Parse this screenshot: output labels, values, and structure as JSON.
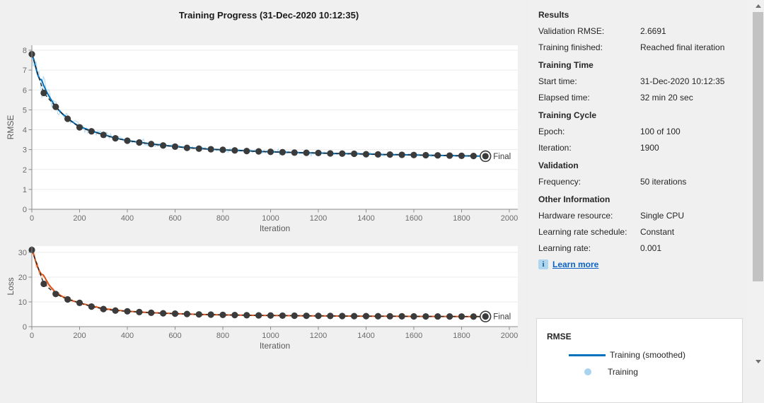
{
  "window": {
    "title": "Training Progress (31-Dec-2020 10:12:35)"
  },
  "colors": {
    "background": "#F0F0F0",
    "train_smoothed_blue": "#0072BD",
    "train_raw_blue": "#9ECFEE",
    "train_smoothed_orange": "#D95319",
    "train_raw_orange": "#F3B08C",
    "validation_marker": "#3B3B3B",
    "validation_dash": "#262626",
    "grid": "#EBEBEB",
    "axis": "#8C8C8C",
    "tick_text": "#6B6B6B",
    "link": "#0B63C5"
  },
  "results_panel": {
    "sections": [
      {
        "header": "Results",
        "rows": [
          {
            "label": "Validation RMSE:",
            "value": "2.6691"
          },
          {
            "label": "Training finished:",
            "value": "Reached final iteration"
          }
        ]
      },
      {
        "header": "Training Time",
        "rows": [
          {
            "label": "Start time:",
            "value": "31-Dec-2020 10:12:35"
          },
          {
            "label": "Elapsed time:",
            "value": "32 min 20 sec"
          }
        ]
      },
      {
        "header": "Training Cycle",
        "rows": [
          {
            "label": "Epoch:",
            "value": "100 of 100"
          },
          {
            "label": "Iteration:",
            "value": "1900"
          }
        ]
      },
      {
        "header": "Validation",
        "rows": [
          {
            "label": "Frequency:",
            "value": "50 iterations"
          }
        ]
      },
      {
        "header": "Other Information",
        "rows": [
          {
            "label": "Hardware resource:",
            "value": "Single CPU"
          },
          {
            "label": "Learning rate schedule:",
            "value": "Constant"
          },
          {
            "label": "Learning rate:",
            "value": "0.001"
          }
        ]
      }
    ],
    "learn_more_label": "Learn more",
    "info_icon_glyph": "i"
  },
  "legend": {
    "title": "RMSE",
    "entries": [
      {
        "label": "Training (smoothed)",
        "swatch": "line",
        "color": "#0072BD"
      },
      {
        "label": "Training",
        "swatch": "dot",
        "color": "#A8D4F0"
      }
    ]
  },
  "chart_data": [
    {
      "type": "line",
      "ylabel": "RMSE",
      "xlabel": "Iteration",
      "xlim": [
        0,
        2044
      ],
      "ylim": [
        0,
        8.25
      ],
      "xticks": [
        0,
        200,
        400,
        600,
        800,
        1000,
        1200,
        1400,
        1600,
        1800,
        2000
      ],
      "yticks": [
        0,
        1,
        2,
        3,
        4,
        5,
        6,
        7,
        8
      ],
      "grid_y": [
        1,
        2,
        3,
        4,
        5,
        6,
        7,
        8
      ],
      "legend_position": "external bottom-right card",
      "grid": "horizontal only",
      "final_label": "Final",
      "final_value": 2.6691,
      "series": [
        {
          "name": "Training (smoothed)",
          "color": "#0072BD",
          "style": "solid",
          "points": [
            [
              0,
              7.8
            ],
            [
              8,
              7.55
            ],
            [
              16,
              7.15
            ],
            [
              24,
              6.78
            ],
            [
              32,
              6.55
            ],
            [
              40,
              6.52
            ],
            [
              48,
              6.28
            ],
            [
              60,
              5.95
            ],
            [
              75,
              5.62
            ],
            [
              100,
              5.15
            ],
            [
              125,
              4.83
            ],
            [
              150,
              4.58
            ],
            [
              175,
              4.35
            ],
            [
              200,
              4.16
            ],
            [
              250,
              3.94
            ],
            [
              300,
              3.76
            ],
            [
              350,
              3.58
            ],
            [
              400,
              3.46
            ],
            [
              450,
              3.37
            ],
            [
              500,
              3.29
            ],
            [
              550,
              3.22
            ],
            [
              600,
              3.16
            ],
            [
              650,
              3.1
            ],
            [
              700,
              3.06
            ],
            [
              750,
              3.02
            ],
            [
              800,
              2.99
            ],
            [
              850,
              2.96
            ],
            [
              900,
              2.94
            ],
            [
              950,
              2.91
            ],
            [
              1000,
              2.89
            ],
            [
              1050,
              2.87
            ],
            [
              1100,
              2.86
            ],
            [
              1150,
              2.84
            ],
            [
              1200,
              2.83
            ],
            [
              1250,
              2.81
            ],
            [
              1300,
              2.8
            ],
            [
              1350,
              2.79
            ],
            [
              1400,
              2.78
            ],
            [
              1450,
              2.76
            ],
            [
              1500,
              2.75
            ],
            [
              1550,
              2.74
            ],
            [
              1600,
              2.73
            ],
            [
              1650,
              2.72
            ],
            [
              1700,
              2.71
            ],
            [
              1750,
              2.7
            ],
            [
              1800,
              2.69
            ],
            [
              1850,
              2.68
            ],
            [
              1900,
              2.67
            ]
          ]
        },
        {
          "name": "Training",
          "color": "#9ECFEE",
          "style": "raw jagged, derived from smoothed"
        },
        {
          "name": "Validation",
          "color": "#3B3B3B",
          "style": "dashed with dot markers every 50 iterations",
          "points": [
            [
              0,
              7.8
            ],
            [
              50,
              5.85
            ],
            [
              100,
              5.15
            ],
            [
              150,
              4.55
            ],
            [
              200,
              4.12
            ],
            [
              250,
              3.92
            ],
            [
              300,
              3.74
            ],
            [
              350,
              3.57
            ],
            [
              400,
              3.45
            ],
            [
              450,
              3.36
            ],
            [
              500,
              3.28
            ],
            [
              550,
              3.21
            ],
            [
              600,
              3.15
            ],
            [
              650,
              3.09
            ],
            [
              700,
              3.05
            ],
            [
              750,
              3.02
            ],
            [
              800,
              2.99
            ],
            [
              850,
              2.96
            ],
            [
              900,
              2.93
            ],
            [
              950,
              2.91
            ],
            [
              1000,
              2.89
            ],
            [
              1050,
              2.87
            ],
            [
              1100,
              2.85
            ],
            [
              1150,
              2.84
            ],
            [
              1200,
              2.83
            ],
            [
              1250,
              2.81
            ],
            [
              1300,
              2.8
            ],
            [
              1350,
              2.79
            ],
            [
              1400,
              2.77
            ],
            [
              1450,
              2.76
            ],
            [
              1500,
              2.75
            ],
            [
              1550,
              2.74
            ],
            [
              1600,
              2.73
            ],
            [
              1650,
              2.72
            ],
            [
              1700,
              2.71
            ],
            [
              1750,
              2.7
            ],
            [
              1800,
              2.69
            ],
            [
              1850,
              2.68
            ],
            [
              1900,
              2.6691
            ]
          ]
        }
      ]
    },
    {
      "type": "line",
      "ylabel": "Loss",
      "xlabel": "Iteration",
      "xlim": [
        0,
        2044
      ],
      "ylim": [
        0,
        32.5
      ],
      "xticks": [
        0,
        200,
        400,
        600,
        800,
        1000,
        1200,
        1400,
        1600,
        1800,
        2000
      ],
      "yticks": [
        0,
        10,
        20,
        30
      ],
      "grid_y": [
        10,
        20,
        30
      ],
      "grid": "horizontal only",
      "final_label": "Final",
      "final_value": 4.1,
      "series": [
        {
          "name": "Training (smoothed)",
          "color": "#D95319",
          "style": "solid",
          "points": [
            [
              0,
              31.0
            ],
            [
              8,
              29.0
            ],
            [
              16,
              26.5
            ],
            [
              24,
              24.2
            ],
            [
              32,
              22.4
            ],
            [
              40,
              21.2
            ],
            [
              48,
              20.9
            ],
            [
              56,
              19.6
            ],
            [
              70,
              17.2
            ],
            [
              85,
              15.3
            ],
            [
              100,
              13.8
            ],
            [
              125,
              12.3
            ],
            [
              150,
              11.2
            ],
            [
              175,
              10.3
            ],
            [
              200,
              9.6
            ],
            [
              250,
              8.3
            ],
            [
              300,
              7.3
            ],
            [
              350,
              6.7
            ],
            [
              400,
              6.25
            ],
            [
              450,
              5.95
            ],
            [
              500,
              5.65
            ],
            [
              550,
              5.45
            ],
            [
              600,
              5.25
            ],
            [
              650,
              5.1
            ],
            [
              700,
              4.95
            ],
            [
              750,
              4.85
            ],
            [
              800,
              4.75
            ],
            [
              850,
              4.68
            ],
            [
              900,
              4.61
            ],
            [
              950,
              4.55
            ],
            [
              1000,
              4.5
            ],
            [
              1050,
              4.46
            ],
            [
              1100,
              4.42
            ],
            [
              1150,
              4.38
            ],
            [
              1200,
              4.35
            ],
            [
              1250,
              4.32
            ],
            [
              1300,
              4.29
            ],
            [
              1350,
              4.27
            ],
            [
              1400,
              4.24
            ],
            [
              1450,
              4.22
            ],
            [
              1500,
              4.19
            ],
            [
              1550,
              4.17
            ],
            [
              1600,
              4.15
            ],
            [
              1650,
              4.14
            ],
            [
              1700,
              4.12
            ],
            [
              1750,
              4.11
            ],
            [
              1800,
              4.09
            ],
            [
              1850,
              4.08
            ],
            [
              1900,
              4.07
            ]
          ]
        },
        {
          "name": "Training",
          "color": "#F3B08C",
          "style": "raw jagged, derived from smoothed"
        },
        {
          "name": "Validation",
          "color": "#3B3B3B",
          "style": "dashed with dot markers every 50 iterations",
          "points": [
            [
              0,
              31.0
            ],
            [
              50,
              17.3
            ],
            [
              100,
              13.2
            ],
            [
              150,
              11.0
            ],
            [
              200,
              9.6
            ],
            [
              250,
              8.1
            ],
            [
              300,
              7.1
            ],
            [
              350,
              6.5
            ],
            [
              400,
              6.2
            ],
            [
              450,
              5.9
            ],
            [
              500,
              5.6
            ],
            [
              550,
              5.4
            ],
            [
              600,
              5.25
            ],
            [
              650,
              5.1
            ],
            [
              700,
              4.95
            ],
            [
              750,
              4.85
            ],
            [
              800,
              4.75
            ],
            [
              850,
              4.68
            ],
            [
              900,
              4.6
            ],
            [
              950,
              4.55
            ],
            [
              1000,
              4.5
            ],
            [
              1050,
              4.45
            ],
            [
              1100,
              4.42
            ],
            [
              1150,
              4.38
            ],
            [
              1200,
              4.35
            ],
            [
              1250,
              4.32
            ],
            [
              1300,
              4.29
            ],
            [
              1350,
              4.26
            ],
            [
              1400,
              4.24
            ],
            [
              1450,
              4.21
            ],
            [
              1500,
              4.19
            ],
            [
              1550,
              4.17
            ],
            [
              1600,
              4.15
            ],
            [
              1650,
              4.13
            ],
            [
              1700,
              4.12
            ],
            [
              1750,
              4.1
            ],
            [
              1800,
              4.09
            ],
            [
              1850,
              4.08
            ],
            [
              1900,
              4.1
            ]
          ]
        }
      ]
    }
  ],
  "scrollbar": {
    "up_icon": "triangle-up",
    "down_icon": "triangle-down"
  }
}
